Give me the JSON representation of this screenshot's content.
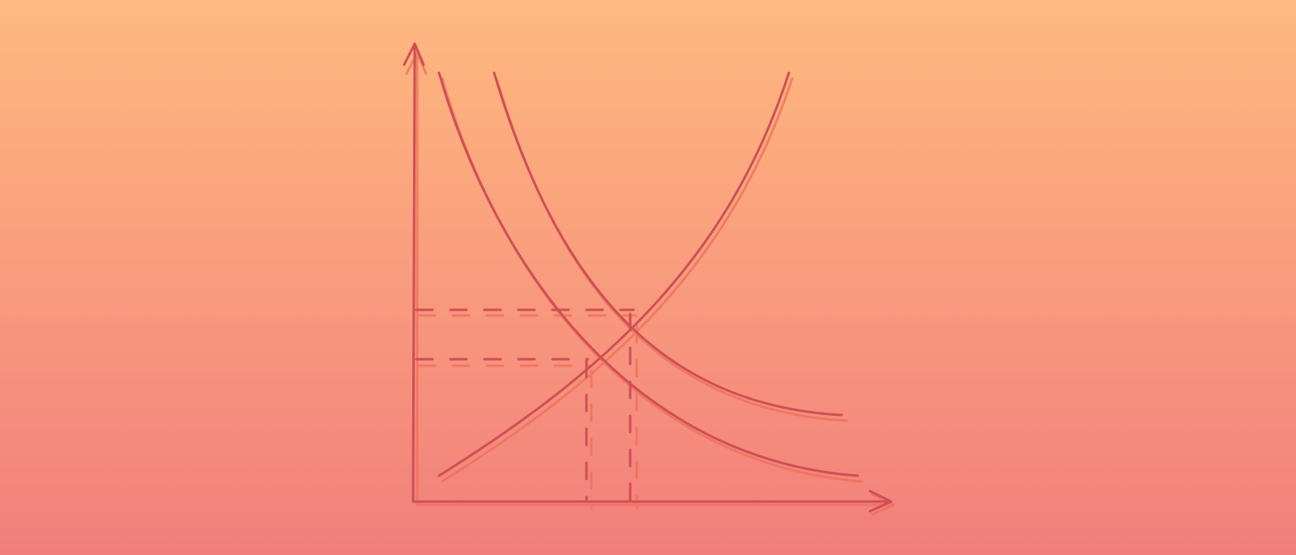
{
  "colors": {
    "background_top": "#ffb97f",
    "background_bottom": "#f27e7c",
    "line": "#cf4f55",
    "line_shadow": "#ef6f5a"
  },
  "graph": {
    "style": "hand-drawn line diagram",
    "axes": [
      "vertical-axis-with-arrow",
      "horizontal-axis-with-arrow"
    ],
    "curves": [
      "demand-curve-original",
      "demand-curve-shifted-right",
      "supply-curve"
    ],
    "guide_lines": [
      "price-guide-high",
      "price-guide-low",
      "quantity-guide-low",
      "quantity-guide-high"
    ]
  }
}
